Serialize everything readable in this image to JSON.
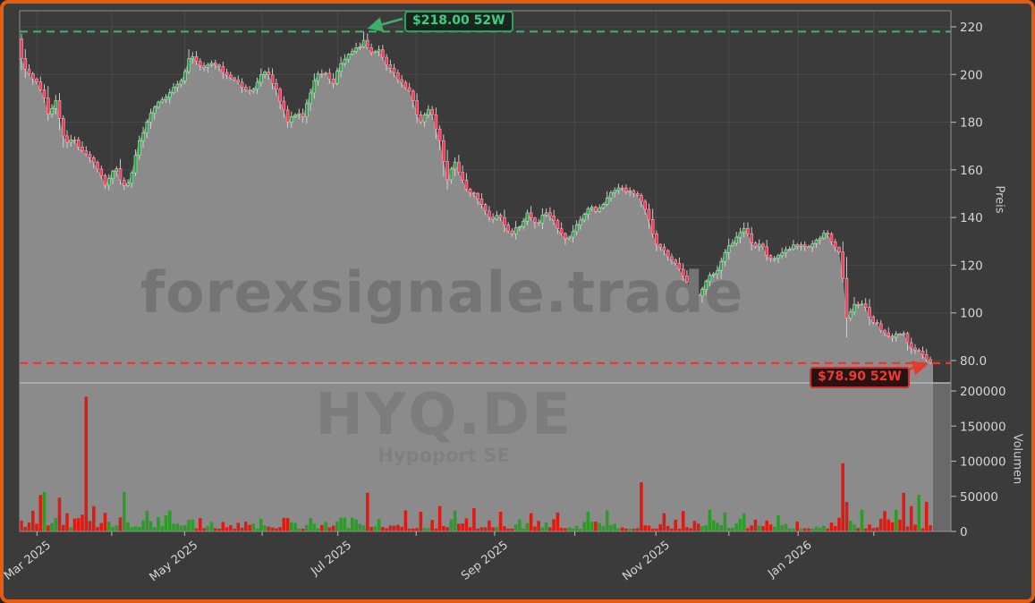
{
  "window": {
    "border_color": "#e65c0f",
    "background": "#3b3b3b"
  },
  "watermarks": {
    "brand": "forexsignale.trade",
    "symbol": "HYQ.DE",
    "company": "Hypoport SE"
  },
  "annotations": {
    "high": {
      "text": "$218.00 52W",
      "price": 218.0,
      "line_color": "#3fae6a",
      "text_color": "#38d183",
      "box_border": "#2f9e5f",
      "box_bg": "#1b241d"
    },
    "low": {
      "text": "$78.90 52W",
      "price": 78.9,
      "line_color": "#e23c31",
      "text_color": "#ef3b2f",
      "box_border": "#cf2f28",
      "box_bg": "#271314"
    }
  },
  "axes": {
    "price": {
      "title": "Preis",
      "ticks": [
        {
          "v": 220,
          "label": "220"
        },
        {
          "v": 200,
          "label": "200"
        },
        {
          "v": 180,
          "label": "180"
        },
        {
          "v": 160,
          "label": "160"
        },
        {
          "v": 140,
          "label": "140"
        },
        {
          "v": 120,
          "label": "120"
        },
        {
          "v": 100,
          "label": "100"
        },
        {
          "v": 80,
          "label": "80.0"
        }
      ]
    },
    "volume": {
      "title": "Volumen",
      "ticks": [
        {
          "v": 200000,
          "label": "200000"
        },
        {
          "v": 150000,
          "label": "150000"
        },
        {
          "v": 100000,
          "label": "100000"
        },
        {
          "v": 50000,
          "label": "50000"
        },
        {
          "v": 0,
          "label": "0"
        }
      ]
    },
    "x": {
      "ticks": [
        {
          "t": 0.019,
          "label": "Mar 2025"
        },
        {
          "t": 0.101,
          "label": ""
        },
        {
          "t": 0.181,
          "label": "May 2025"
        },
        {
          "t": 0.266,
          "label": ""
        },
        {
          "t": 0.349,
          "label": "Jul 2025"
        },
        {
          "t": 0.435,
          "label": ""
        },
        {
          "t": 0.521,
          "label": "Sep 2025"
        },
        {
          "t": 0.609,
          "label": ""
        },
        {
          "t": 0.698,
          "label": "Nov 2025"
        },
        {
          "t": 0.778,
          "label": ""
        },
        {
          "t": 0.854,
          "label": "Jan 2026"
        },
        {
          "t": 0.937,
          "label": ""
        }
      ]
    }
  },
  "chart_data": {
    "type": "candlestick_with_volume",
    "symbol": "HYQ.DE",
    "company": "Hypoport SE",
    "watermark": "forexsignale.trade",
    "price_axis_label": "Preis",
    "volume_axis_label": "Volumen",
    "high_52w": 218.0,
    "low_52w": 78.9,
    "price_ticks": [
      80,
      100,
      120,
      140,
      160,
      180,
      200,
      220
    ],
    "volume_ticks": [
      0,
      50000,
      100000,
      150000,
      200000
    ],
    "x_tick_labels": [
      "Mar 2025",
      "May 2025",
      "Jul 2025",
      "Sep 2025",
      "Nov 2025",
      "Jan 2026"
    ],
    "candle_count": 240,
    "close_path": [
      [
        0.0,
        208
      ],
      [
        0.008,
        200
      ],
      [
        0.018,
        198
      ],
      [
        0.027,
        190
      ],
      [
        0.032,
        183
      ],
      [
        0.04,
        189
      ],
      [
        0.05,
        171
      ],
      [
        0.059,
        173
      ],
      [
        0.074,
        166
      ],
      [
        0.083,
        162
      ],
      [
        0.093,
        154
      ],
      [
        0.1,
        158
      ],
      [
        0.106,
        160
      ],
      [
        0.116,
        152
      ],
      [
        0.123,
        158
      ],
      [
        0.129,
        169
      ],
      [
        0.138,
        179
      ],
      [
        0.148,
        187
      ],
      [
        0.16,
        191
      ],
      [
        0.175,
        196
      ],
      [
        0.183,
        203
      ],
      [
        0.187,
        210
      ],
      [
        0.193,
        205
      ],
      [
        0.201,
        203
      ],
      [
        0.214,
        205
      ],
      [
        0.227,
        200
      ],
      [
        0.24,
        197
      ],
      [
        0.25,
        193
      ],
      [
        0.258,
        194
      ],
      [
        0.265,
        200
      ],
      [
        0.271,
        201
      ],
      [
        0.278,
        196
      ],
      [
        0.285,
        190
      ],
      [
        0.294,
        180
      ],
      [
        0.303,
        184
      ],
      [
        0.31,
        182
      ],
      [
        0.318,
        192
      ],
      [
        0.326,
        200
      ],
      [
        0.334,
        201
      ],
      [
        0.343,
        196
      ],
      [
        0.352,
        205
      ],
      [
        0.366,
        210
      ],
      [
        0.375,
        213
      ],
      [
        0.379,
        214
      ],
      [
        0.384,
        208
      ],
      [
        0.394,
        210
      ],
      [
        0.402,
        204
      ],
      [
        0.413,
        199
      ],
      [
        0.421,
        196
      ],
      [
        0.427,
        194
      ],
      [
        0.433,
        187
      ],
      [
        0.438,
        180
      ],
      [
        0.444,
        183
      ],
      [
        0.45,
        186
      ],
      [
        0.457,
        177
      ],
      [
        0.462,
        170
      ],
      [
        0.469,
        156
      ],
      [
        0.477,
        164
      ],
      [
        0.483,
        158
      ],
      [
        0.49,
        152
      ],
      [
        0.497,
        150
      ],
      [
        0.503,
        147
      ],
      [
        0.511,
        142
      ],
      [
        0.519,
        139
      ],
      [
        0.526,
        142
      ],
      [
        0.534,
        136
      ],
      [
        0.539,
        133
      ],
      [
        0.545,
        137
      ],
      [
        0.551,
        136
      ],
      [
        0.557,
        142
      ],
      [
        0.563,
        139
      ],
      [
        0.569,
        138
      ],
      [
        0.575,
        141
      ],
      [
        0.581,
        142
      ],
      [
        0.588,
        137
      ],
      [
        0.594,
        133
      ],
      [
        0.601,
        130
      ],
      [
        0.607,
        134
      ],
      [
        0.614,
        139
      ],
      [
        0.621,
        143
      ],
      [
        0.627,
        144
      ],
      [
        0.633,
        142
      ],
      [
        0.639,
        145
      ],
      [
        0.646,
        150
      ],
      [
        0.654,
        151
      ],
      [
        0.66,
        153
      ],
      [
        0.667,
        151
      ],
      [
        0.674,
        150
      ],
      [
        0.68,
        149
      ],
      [
        0.685,
        144
      ],
      [
        0.69,
        140
      ],
      [
        0.696,
        131
      ],
      [
        0.703,
        127
      ],
      [
        0.71,
        124
      ],
      [
        0.716,
        121
      ],
      [
        0.723,
        119
      ],
      [
        0.729,
        115
      ],
      [
        0.735,
        111
      ],
      [
        0.742,
        106
      ],
      [
        0.748,
        109
      ],
      [
        0.755,
        115
      ],
      [
        0.762,
        116
      ],
      [
        0.767,
        119
      ],
      [
        0.772,
        125
      ],
      [
        0.778,
        128
      ],
      [
        0.785,
        131
      ],
      [
        0.791,
        134
      ],
      [
        0.796,
        136
      ],
      [
        0.801,
        132
      ],
      [
        0.806,
        127
      ],
      [
        0.812,
        129
      ],
      [
        0.817,
        126
      ],
      [
        0.823,
        123
      ],
      [
        0.83,
        124
      ],
      [
        0.837,
        125
      ],
      [
        0.844,
        127
      ],
      [
        0.851,
        129
      ],
      [
        0.858,
        128
      ],
      [
        0.865,
        128
      ],
      [
        0.872,
        130
      ],
      [
        0.879,
        132
      ],
      [
        0.884,
        134
      ],
      [
        0.889,
        131
      ],
      [
        0.894,
        128
      ],
      [
        0.899,
        125
      ],
      [
        0.903,
        115
      ],
      [
        0.907,
        98
      ],
      [
        0.912,
        101
      ],
      [
        0.918,
        104
      ],
      [
        0.922,
        104
      ],
      [
        0.928,
        102
      ],
      [
        0.934,
        98
      ],
      [
        0.94,
        95
      ],
      [
        0.946,
        93
      ],
      [
        0.952,
        90
      ],
      [
        0.958,
        89
      ],
      [
        0.963,
        92
      ],
      [
        0.968,
        92
      ],
      [
        0.973,
        89
      ],
      [
        0.977,
        86
      ],
      [
        0.982,
        85
      ],
      [
        0.987,
        84
      ],
      [
        0.992,
        82
      ],
      [
        0.996,
        80.5
      ],
      [
        1.0,
        79.2
      ]
    ],
    "volume_spikes": [
      [
        0.021,
        52000,
        ""
      ],
      [
        0.025,
        56000,
        "g"
      ],
      [
        0.043,
        48000,
        ""
      ],
      [
        0.073,
        192000,
        "r"
      ],
      [
        0.08,
        36000,
        "r"
      ],
      [
        0.116,
        56000,
        "g"
      ],
      [
        0.165,
        30000,
        ""
      ],
      [
        0.381,
        55000,
        "r"
      ],
      [
        0.422,
        30000,
        ""
      ],
      [
        0.44,
        28000,
        ""
      ],
      [
        0.459,
        36000,
        ""
      ],
      [
        0.479,
        30000,
        ""
      ],
      [
        0.499,
        33000,
        ""
      ],
      [
        0.528,
        28000,
        ""
      ],
      [
        0.559,
        26000,
        ""
      ],
      [
        0.592,
        27000,
        ""
      ],
      [
        0.623,
        28000,
        ""
      ],
      [
        0.646,
        30000,
        ""
      ],
      [
        0.683,
        70000,
        "r"
      ],
      [
        0.706,
        26000,
        ""
      ],
      [
        0.728,
        29000,
        ""
      ],
      [
        0.755,
        31000,
        ""
      ],
      [
        0.775,
        27000,
        ""
      ],
      [
        0.796,
        26000,
        ""
      ],
      [
        0.833,
        23000,
        ""
      ],
      [
        0.901,
        97000,
        "r"
      ],
      [
        0.909,
        42000,
        "r"
      ],
      [
        0.926,
        31000,
        ""
      ],
      [
        0.95,
        29000,
        ""
      ],
      [
        0.962,
        31000,
        ""
      ],
      [
        0.97,
        55000,
        "r"
      ],
      [
        0.978,
        36000,
        ""
      ],
      [
        0.987,
        52000,
        "g"
      ],
      [
        0.995,
        42000,
        "r"
      ]
    ],
    "colors": {
      "up": "#2fa047",
      "up_edge": "#a8e6b2",
      "down": "#ef3e55",
      "down_edge": "#ffa9bb",
      "wick": "#d8d8d8",
      "vol_up": "#2c9b28",
      "vol_down": "#df1a12",
      "area": "#8b8b8b",
      "panel_right": "#696969",
      "grid": "#4a4a4a",
      "spine": "#8f8f8f",
      "tick_text": "#d6d6d6"
    }
  }
}
